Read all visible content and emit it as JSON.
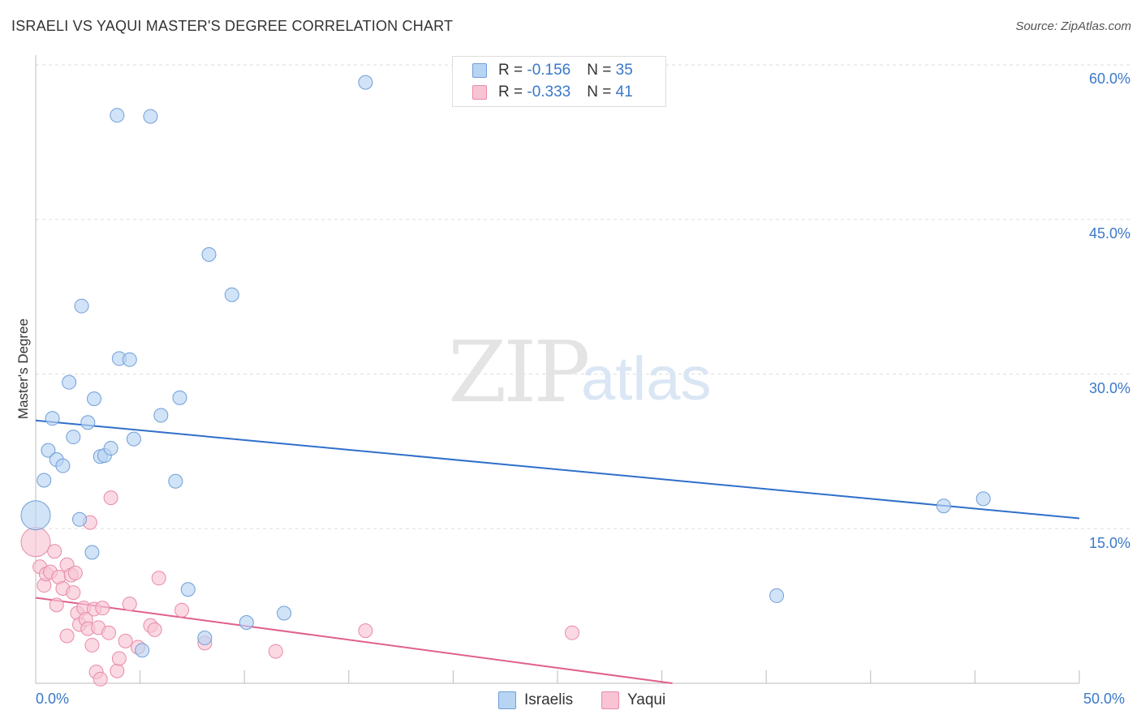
{
  "title": "ISRAELI VS YAQUI MASTER'S DEGREE CORRELATION CHART",
  "source": "Source: ZipAtlas.com",
  "watermark": {
    "zip": "ZIP",
    "atlas": "atlas"
  },
  "legend": {
    "rows": [
      {
        "r_label": "R = ",
        "r_value": "-0.156",
        "n_label": "N = ",
        "n_value": "35"
      },
      {
        "r_label": "R = ",
        "r_value": "-0.333",
        "n_label": "N = ",
        "n_value": "41"
      }
    ]
  },
  "bottom_legend": {
    "israelis": "Israelis",
    "yaqui": "Yaqui"
  },
  "colors": {
    "israelis_fill": "#b8d4f3",
    "israelis_stroke": "#6f9fd8",
    "israelis_line": "#2f6fcb",
    "yaqui_fill": "#f8c4d4",
    "yaqui_stroke": "#e98aa8",
    "yaqui_line": "#e0608e",
    "axis_label": "#3a78c9",
    "grid": "#dddddd"
  },
  "chart_data": {
    "type": "scatter",
    "title": "ISRAELI VS YAQUI MASTER'S DEGREE CORRELATION CHART",
    "xlabel": "",
    "ylabel": "Master's Degree",
    "xlim": [
      0,
      50
    ],
    "ylim": [
      0,
      60
    ],
    "x_tick_labels": [
      "0.0%",
      "50.0%"
    ],
    "y_tick_labels": [
      {
        "value": 15,
        "label": "15.0%"
      },
      {
        "value": 30,
        "label": "30.0%"
      },
      {
        "value": 45,
        "label": "45.0%"
      },
      {
        "value": 60,
        "label": "60.0%"
      }
    ],
    "series": [
      {
        "name": "Israelis",
        "r": -0.156,
        "n": 35,
        "trend": {
          "x": [
            0,
            50
          ],
          "y": [
            25.5,
            16.0
          ]
        },
        "points": [
          {
            "x": 0.0,
            "y": 16.3,
            "size": "large"
          },
          {
            "x": 0.4,
            "y": 19.7
          },
          {
            "x": 0.6,
            "y": 22.6
          },
          {
            "x": 0.8,
            "y": 25.7
          },
          {
            "x": 1.0,
            "y": 21.7
          },
          {
            "x": 1.3,
            "y": 21.1
          },
          {
            "x": 1.6,
            "y": 29.2
          },
          {
            "x": 1.8,
            "y": 23.9
          },
          {
            "x": 2.1,
            "y": 15.9
          },
          {
            "x": 2.2,
            "y": 36.6
          },
          {
            "x": 2.5,
            "y": 25.3
          },
          {
            "x": 2.7,
            "y": 12.7
          },
          {
            "x": 2.8,
            "y": 27.6
          },
          {
            "x": 3.1,
            "y": 22.0
          },
          {
            "x": 3.3,
            "y": 22.1
          },
          {
            "x": 3.6,
            "y": 22.8
          },
          {
            "x": 3.9,
            "y": 55.1
          },
          {
            "x": 4.0,
            "y": 31.5
          },
          {
            "x": 4.5,
            "y": 31.4
          },
          {
            "x": 4.7,
            "y": 23.7
          },
          {
            "x": 5.1,
            "y": 3.2
          },
          {
            "x": 5.5,
            "y": 55.0
          },
          {
            "x": 6.0,
            "y": 26.0
          },
          {
            "x": 6.7,
            "y": 19.6
          },
          {
            "x": 6.9,
            "y": 27.7
          },
          {
            "x": 7.3,
            "y": 9.1
          },
          {
            "x": 8.1,
            "y": 4.4
          },
          {
            "x": 8.3,
            "y": 41.6
          },
          {
            "x": 9.4,
            "y": 37.7
          },
          {
            "x": 10.1,
            "y": 5.9
          },
          {
            "x": 11.9,
            "y": 6.8
          },
          {
            "x": 15.8,
            "y": 58.3
          },
          {
            "x": 35.5,
            "y": 8.5
          },
          {
            "x": 43.5,
            "y": 17.2
          },
          {
            "x": 45.4,
            "y": 17.9
          }
        ]
      },
      {
        "name": "Yaqui",
        "r": -0.333,
        "n": 41,
        "trend": {
          "x": [
            0,
            30.5
          ],
          "y": [
            8.3,
            0.0
          ]
        },
        "points": [
          {
            "x": 0.0,
            "y": 13.7,
            "size": "large"
          },
          {
            "x": 0.2,
            "y": 11.3
          },
          {
            "x": 0.4,
            "y": 9.5
          },
          {
            "x": 0.5,
            "y": 10.6
          },
          {
            "x": 0.7,
            "y": 10.8
          },
          {
            "x": 0.9,
            "y": 12.8
          },
          {
            "x": 1.0,
            "y": 7.6
          },
          {
            "x": 1.1,
            "y": 10.3
          },
          {
            "x": 1.3,
            "y": 9.2
          },
          {
            "x": 1.5,
            "y": 11.5
          },
          {
            "x": 1.5,
            "y": 4.6
          },
          {
            "x": 1.7,
            "y": 10.5
          },
          {
            "x": 1.8,
            "y": 8.8
          },
          {
            "x": 1.9,
            "y": 10.7
          },
          {
            "x": 2.0,
            "y": 6.8
          },
          {
            "x": 2.1,
            "y": 5.7
          },
          {
            "x": 2.3,
            "y": 7.3
          },
          {
            "x": 2.4,
            "y": 6.2
          },
          {
            "x": 2.5,
            "y": 5.3
          },
          {
            "x": 2.6,
            "y": 15.6
          },
          {
            "x": 2.7,
            "y": 3.7
          },
          {
            "x": 2.8,
            "y": 7.2
          },
          {
            "x": 2.9,
            "y": 1.1
          },
          {
            "x": 3.0,
            "y": 5.4
          },
          {
            "x": 3.1,
            "y": 0.4
          },
          {
            "x": 3.2,
            "y": 7.3
          },
          {
            "x": 3.5,
            "y": 4.9
          },
          {
            "x": 3.6,
            "y": 18.0
          },
          {
            "x": 3.9,
            "y": 1.2
          },
          {
            "x": 4.0,
            "y": 2.4
          },
          {
            "x": 4.3,
            "y": 4.1
          },
          {
            "x": 4.5,
            "y": 7.7
          },
          {
            "x": 4.9,
            "y": 3.5
          },
          {
            "x": 5.5,
            "y": 5.6
          },
          {
            "x": 5.7,
            "y": 5.2
          },
          {
            "x": 5.9,
            "y": 10.2
          },
          {
            "x": 7.0,
            "y": 7.1
          },
          {
            "x": 8.1,
            "y": 3.9
          },
          {
            "x": 11.5,
            "y": 3.1
          },
          {
            "x": 15.8,
            "y": 5.1
          },
          {
            "x": 25.7,
            "y": 4.9
          }
        ]
      }
    ]
  }
}
